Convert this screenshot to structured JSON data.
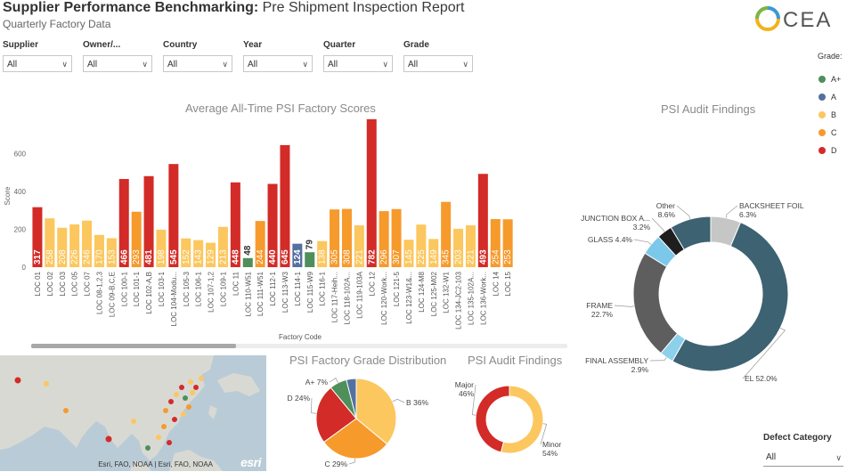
{
  "header": {
    "title_bold": "Supplier Performance Benchmarking:",
    "title_rest": " Pre Shipment Inspection Report",
    "subtitle": "Quarterly Factory Data",
    "logo_text": "CEA"
  },
  "filters": [
    {
      "label": "Supplier",
      "value": "All"
    },
    {
      "label": "Owner/...",
      "value": "All"
    },
    {
      "label": "Country",
      "value": "All"
    },
    {
      "label": "Year",
      "value": "All"
    },
    {
      "label": "Quarter",
      "value": "All"
    },
    {
      "label": "Grade",
      "value": "All"
    }
  ],
  "legend": {
    "title": "Grade:",
    "items": [
      {
        "label": "A+",
        "color": "#4e8f5a"
      },
      {
        "label": "A",
        "color": "#5470a0"
      },
      {
        "label": "B",
        "color": "#fbc75e"
      },
      {
        "label": "C",
        "color": "#f69a2c"
      },
      {
        "label": "D",
        "color": "#d32b27"
      }
    ]
  },
  "defect": {
    "label": "Defect Category",
    "value": "All"
  },
  "map": {
    "attribution": "Esri, FAO, NOAA | Esri, FAO, NOAA",
    "logo": "esri"
  },
  "chart_data": [
    {
      "type": "bar",
      "title": "Average All-Time PSI Factory Scores",
      "xlabel": "Factory Code",
      "ylabel": "Score",
      "ylim": [
        0,
        800
      ],
      "yticks": [
        0,
        200,
        400,
        600
      ],
      "grade_colors": {
        "A+": "#4e8f5a",
        "A": "#5470a0",
        "B": "#fbc75e",
        "C": "#f69a2c",
        "D": "#d32b27"
      },
      "categories": [
        "LOC 01",
        "LOC 02",
        "LOC 03",
        "LOC 05",
        "LOC 07",
        "LOC 08-1,2,3",
        "LOC 09-B,C,E",
        "LOC 100-1",
        "LOC 101-1",
        "LOC 102-A,B",
        "LOC 103-1",
        "LOC 104-Modu...",
        "LOC 105-3",
        "LOC 106-1",
        "LOC 107-1,2",
        "LOC 109-1",
        "LOC 11",
        "LOC 110-W51",
        "LOC 111-W51",
        "LOC 112-1",
        "LOC 113-W3",
        "LOC 114-1",
        "LOC 115-W9",
        "LOC 116-1",
        "LOC 117-Heih...",
        "LOC 118-102A...",
        "LOC 119-103A",
        "LOC 12",
        "LOC 120-Work...",
        "LOC 121-5",
        "LOC 123-W1&...",
        "LOC 124-M8",
        "LOC 125-M02",
        "LOC 132-W1",
        "LOC 134-JC2-103",
        "LOC 135-102A...",
        "LOC 136-Work...",
        "LOC 14",
        "LOC 15"
      ],
      "values": [
        317,
        258,
        208,
        226,
        246,
        170,
        153,
        466,
        293,
        481,
        198,
        545,
        152,
        143,
        129,
        213,
        448,
        48,
        244,
        440,
        645,
        124,
        79,
        138,
        305,
        308,
        221,
        782,
        296,
        307,
        145,
        225,
        149,
        345,
        203,
        221,
        493,
        254,
        253
      ],
      "grades": [
        "D",
        "B",
        "B",
        "B",
        "B",
        "B",
        "B",
        "D",
        "C",
        "D",
        "B",
        "D",
        "B",
        "B",
        "B",
        "B",
        "D",
        "A+",
        "C",
        "D",
        "D",
        "A",
        "A+",
        "B",
        "C",
        "C",
        "B",
        "D",
        "C",
        "C",
        "B",
        "B",
        "B",
        "C",
        "B",
        "B",
        "D",
        "C",
        "C"
      ]
    },
    {
      "type": "pie",
      "title": "PSI Factory Grade Distribution",
      "labels": [
        "A+",
        "A",
        "B",
        "C",
        "D"
      ],
      "values": [
        7,
        4,
        36,
        29,
        24
      ],
      "colors": [
        "#4e8f5a",
        "#5470a0",
        "#fbc75e",
        "#f69a2c",
        "#d32b27"
      ],
      "data_labels": [
        "A+ 7%",
        "",
        "B 36%",
        "C 29%",
        "D 24%"
      ]
    },
    {
      "type": "pie",
      "title": "PSI Audit Findings",
      "donut": true,
      "labels": [
        "Major",
        "Minor"
      ],
      "values": [
        46,
        54
      ],
      "colors": [
        "#d32b27",
        "#fbc75e"
      ],
      "data_labels": [
        [
          "Major",
          "46%"
        ],
        [
          "Minor",
          "54%"
        ]
      ]
    },
    {
      "type": "pie",
      "title": "PSI Audit Findings",
      "donut": true,
      "labels": [
        "BACKSHEET FOIL",
        "EL",
        "FINAL ASSEMBLY",
        "FRAME",
        "GLASS",
        "JUNCTION BOX A...",
        "Other"
      ],
      "values": [
        6.3,
        52.0,
        2.9,
        22.7,
        4.4,
        3.2,
        8.6
      ],
      "colors": [
        "#c6c6c6",
        "#3d6272",
        "#8cd0ec",
        "#5e5e5e",
        "#7cc8ea",
        "#1e1e1e",
        "#3d6272"
      ],
      "data_labels": [
        [
          "BACKSHEET FOIL",
          "6.3%"
        ],
        [
          "EL 52.0%"
        ],
        [
          "FINAL ASSEMBLY",
          "2.9%"
        ],
        [
          "FRAME",
          "22.7%"
        ],
        [
          "GLASS 4.4%"
        ],
        [
          "JUNCTION BOX A...",
          "3.2%"
        ],
        [
          "Other",
          "8.6%"
        ]
      ]
    }
  ]
}
